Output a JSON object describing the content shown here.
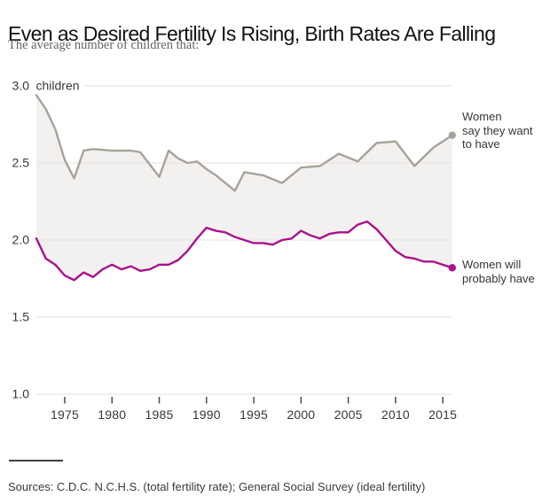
{
  "header": {
    "title": "Even as Desired Fertility Is Rising, Birth Rates Are Falling",
    "subtitle": "The average number of children that:"
  },
  "chart_data": {
    "type": "line",
    "title": "Even as Desired Fertility Is Rising, Birth Rates Are Falling",
    "subtitle": "The average number of children that:",
    "xlim": [
      1972,
      2016
    ],
    "ylim": [
      1.0,
      3.0
    ],
    "grid": "horizontal",
    "legend_position": "right-annotations",
    "x_ticks": [
      "1975",
      "1980",
      "1985",
      "1990",
      "1995",
      "2000",
      "2005",
      "2010",
      "2015"
    ],
    "y_ticks": [
      "3.0",
      "2.5",
      "2.0",
      "1.5",
      "1.0"
    ],
    "y_axis_unit": "children",
    "band_fill": "#f2f1ef",
    "gridline_color": "#e3e2e0",
    "tick_color": "#4b4b4b",
    "axis_text_color": "#383838",
    "series": [
      {
        "name": "ideal-fertility",
        "label": "Women\nsay they want\nto have",
        "color": "#a8a29a",
        "points": [
          [
            1972,
            2.94
          ],
          [
            1973,
            2.85
          ],
          [
            1974,
            2.72
          ],
          [
            1975,
            2.52
          ],
          [
            1976,
            2.4
          ],
          [
            1977,
            2.58
          ],
          [
            1978,
            2.59
          ],
          [
            1980,
            2.58
          ],
          [
            1982,
            2.58
          ],
          [
            1983,
            2.57
          ],
          [
            1984,
            2.49
          ],
          [
            1985,
            2.41
          ],
          [
            1986,
            2.58
          ],
          [
            1987,
            2.53
          ],
          [
            1988,
            2.5
          ],
          [
            1989,
            2.51
          ],
          [
            1990,
            2.46
          ],
          [
            1991,
            2.42
          ],
          [
            1993,
            2.32
          ],
          [
            1994,
            2.44
          ],
          [
            1996,
            2.42
          ],
          [
            1998,
            2.37
          ],
          [
            2000,
            2.47
          ],
          [
            2002,
            2.48
          ],
          [
            2004,
            2.56
          ],
          [
            2006,
            2.51
          ],
          [
            2008,
            2.63
          ],
          [
            2010,
            2.64
          ],
          [
            2012,
            2.48
          ],
          [
            2014,
            2.6
          ],
          [
            2016,
            2.68
          ]
        ]
      },
      {
        "name": "total-fertility-rate",
        "label": "Women will\nprobably have",
        "color": "#ab108c",
        "points": [
          [
            1972,
            2.01
          ],
          [
            1973,
            1.88
          ],
          [
            1974,
            1.84
          ],
          [
            1975,
            1.77
          ],
          [
            1976,
            1.74
          ],
          [
            1977,
            1.79
          ],
          [
            1978,
            1.76
          ],
          [
            1979,
            1.81
          ],
          [
            1980,
            1.84
          ],
          [
            1981,
            1.81
          ],
          [
            1982,
            1.83
          ],
          [
            1983,
            1.8
          ],
          [
            1984,
            1.81
          ],
          [
            1985,
            1.84
          ],
          [
            1986,
            1.84
          ],
          [
            1987,
            1.87
          ],
          [
            1988,
            1.93
          ],
          [
            1989,
            2.01
          ],
          [
            1990,
            2.08
          ],
          [
            1991,
            2.06
          ],
          [
            1992,
            2.05
          ],
          [
            1993,
            2.02
          ],
          [
            1994,
            2.0
          ],
          [
            1995,
            1.98
          ],
          [
            1996,
            1.98
          ],
          [
            1997,
            1.97
          ],
          [
            1998,
            2.0
          ],
          [
            1999,
            2.01
          ],
          [
            2000,
            2.06
          ],
          [
            2001,
            2.03
          ],
          [
            2002,
            2.01
          ],
          [
            2003,
            2.04
          ],
          [
            2004,
            2.05
          ],
          [
            2005,
            2.05
          ],
          [
            2006,
            2.1
          ],
          [
            2007,
            2.12
          ],
          [
            2008,
            2.07
          ],
          [
            2009,
            2.0
          ],
          [
            2010,
            1.93
          ],
          [
            2011,
            1.89
          ],
          [
            2012,
            1.88
          ],
          [
            2013,
            1.86
          ],
          [
            2014,
            1.86
          ],
          [
            2015,
            1.84
          ],
          [
            2016,
            1.82
          ]
        ]
      }
    ]
  },
  "footer": {
    "sources": "Sources: C.D.C. N.C.H.S. (total fertility rate); General Social Survey (ideal fertility)"
  }
}
